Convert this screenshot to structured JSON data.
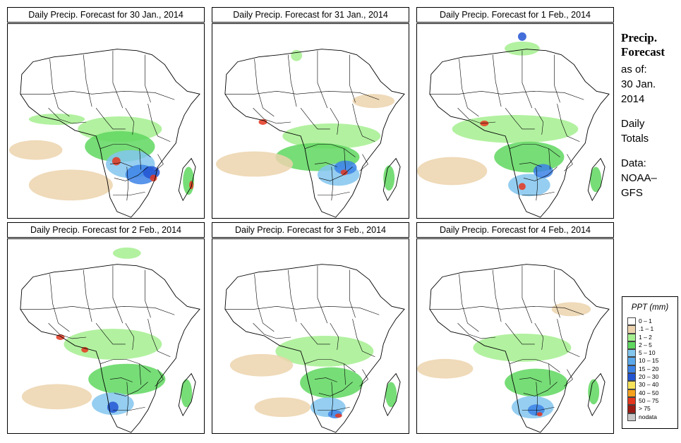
{
  "panels": [
    {
      "title": "Daily Precip. Forecast for  30 Jan., 2014"
    },
    {
      "title": "Daily Precip. Forecast for  31 Jan., 2014"
    },
    {
      "title": "Daily Precip. Forecast for  1 Feb., 2014"
    },
    {
      "title": "Daily Precip. Forecast for  2 Feb., 2014"
    },
    {
      "title": "Daily Precip. Forecast for  3 Feb., 2014"
    },
    {
      "title": "Daily Precip. Forecast for  4 Feb., 2014"
    }
  ],
  "side_text": {
    "heading_line1": "Precip.",
    "heading_line2": "Forecast",
    "asof_line1": "as of:",
    "asof_line2": "30 Jan.",
    "asof_line3": "2014",
    "totals_line1": "Daily",
    "totals_line2": "Totals",
    "data_line1": "Data:",
    "data_line2": "NOAA–",
    "data_line3": "GFS"
  },
  "legend": {
    "title": "PPT (mm)",
    "entries": [
      {
        "label": "0 – 1",
        "color": "#ffffff"
      },
      {
        "label": ".1 – 1",
        "color": "#ecd3ad"
      },
      {
        "label": "1 – 2",
        "color": "#a5ef8f"
      },
      {
        "label": "2 – 5",
        "color": "#5fd75f"
      },
      {
        "label": "5 – 10",
        "color": "#82c6ee"
      },
      {
        "label": "10 – 15",
        "color": "#5aa8ea"
      },
      {
        "label": "15 – 20",
        "color": "#3c82e6"
      },
      {
        "label": "20 – 30",
        "color": "#2355d2"
      },
      {
        "label": "30 – 40",
        "color": "#f6e25a"
      },
      {
        "label": "40 – 50",
        "color": "#f5a21e"
      },
      {
        "label": "50 – 75",
        "color": "#e5361e"
      },
      {
        "label": "> 75",
        "color": "#9b1c14"
      },
      {
        "label": "nodata",
        "color": "#c8c8c8"
      }
    ]
  },
  "chart_data": {
    "type": "heatmap",
    "region": "Africa",
    "series_name": "PPT (mm)",
    "panel_dates": [
      "30 Jan., 2014",
      "31 Jan., 2014",
      "1 Feb., 2014",
      "2 Feb., 2014",
      "3 Feb., 2014",
      "4 Feb., 2014"
    ],
    "class_breaks_mm": [
      "0 – 1",
      ".1 – 1",
      "1 – 2",
      "2 – 5",
      "5 – 10",
      "10 – 15",
      "15 – 20",
      "20 – 30",
      "30 – 40",
      "40 – 50",
      "50 – 75",
      "> 75",
      "nodata"
    ]
  }
}
